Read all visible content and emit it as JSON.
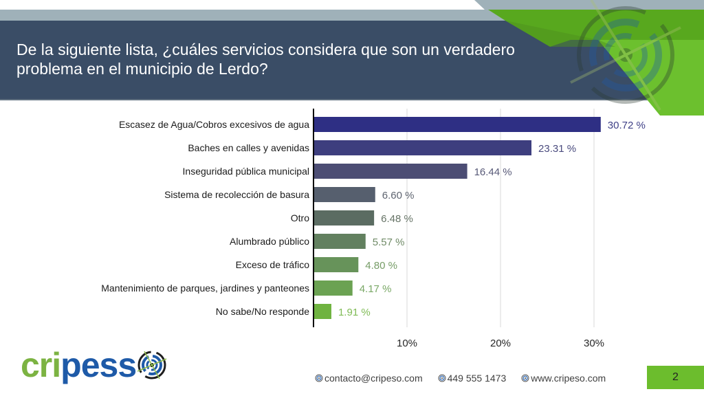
{
  "slide": {
    "title": "De la siguiente lista, ¿cuáles servicios considera que son un verdadero problema en el municipio de Lerdo?",
    "page_number": "2"
  },
  "brand": {
    "logo_part1": "cri",
    "logo_part2": "pes",
    "colors": {
      "navy": "#3a4d66",
      "green": "#6cbd2d",
      "logo_green": "#7cb342",
      "logo_blue": "#1e5aa8"
    }
  },
  "footer": {
    "email": "contacto@cripeso.com",
    "phone": "449 555 1473",
    "website": "www.cripeso.com"
  },
  "chart_data": {
    "type": "bar",
    "orientation": "horizontal",
    "title": "",
    "xlabel": "",
    "ylabel": "",
    "xlim": [
      0,
      35
    ],
    "x_ticks": [
      10,
      20,
      30
    ],
    "x_tick_labels": [
      "10%",
      "20%",
      "30%"
    ],
    "grid": true,
    "categories": [
      "Escasez de Agua/Cobros excesivos de agua",
      "Baches en calles y avenidas",
      "Inseguridad pública municipal",
      "Sistema de recolección de basura",
      "Otro",
      "Alumbrado público",
      "Exceso de tráfico",
      "Mantenimiento de parques, jardines y panteones",
      "No sabe/No responde"
    ],
    "values": [
      30.72,
      23.31,
      16.44,
      6.6,
      6.48,
      5.57,
      4.8,
      4.17,
      1.91
    ],
    "value_labels": [
      "30.72 %",
      "23.31 %",
      "16.44 %",
      "6.60 %",
      "6.48 %",
      "5.57 %",
      "4.80 %",
      "4.17 %",
      "1.91 %"
    ],
    "bar_colors": [
      "#2e2f84",
      "#3d3e7e",
      "#4c4d74",
      "#565f6e",
      "#5b6c62",
      "#62805f",
      "#67935a",
      "#6ba252",
      "#6fb340"
    ],
    "label_colors": [
      "#3e3f86",
      "#4a4b7e",
      "#585a78",
      "#5e6470",
      "#667366",
      "#6f8a66",
      "#769c66",
      "#7aa866",
      "#7fbb55"
    ]
  }
}
